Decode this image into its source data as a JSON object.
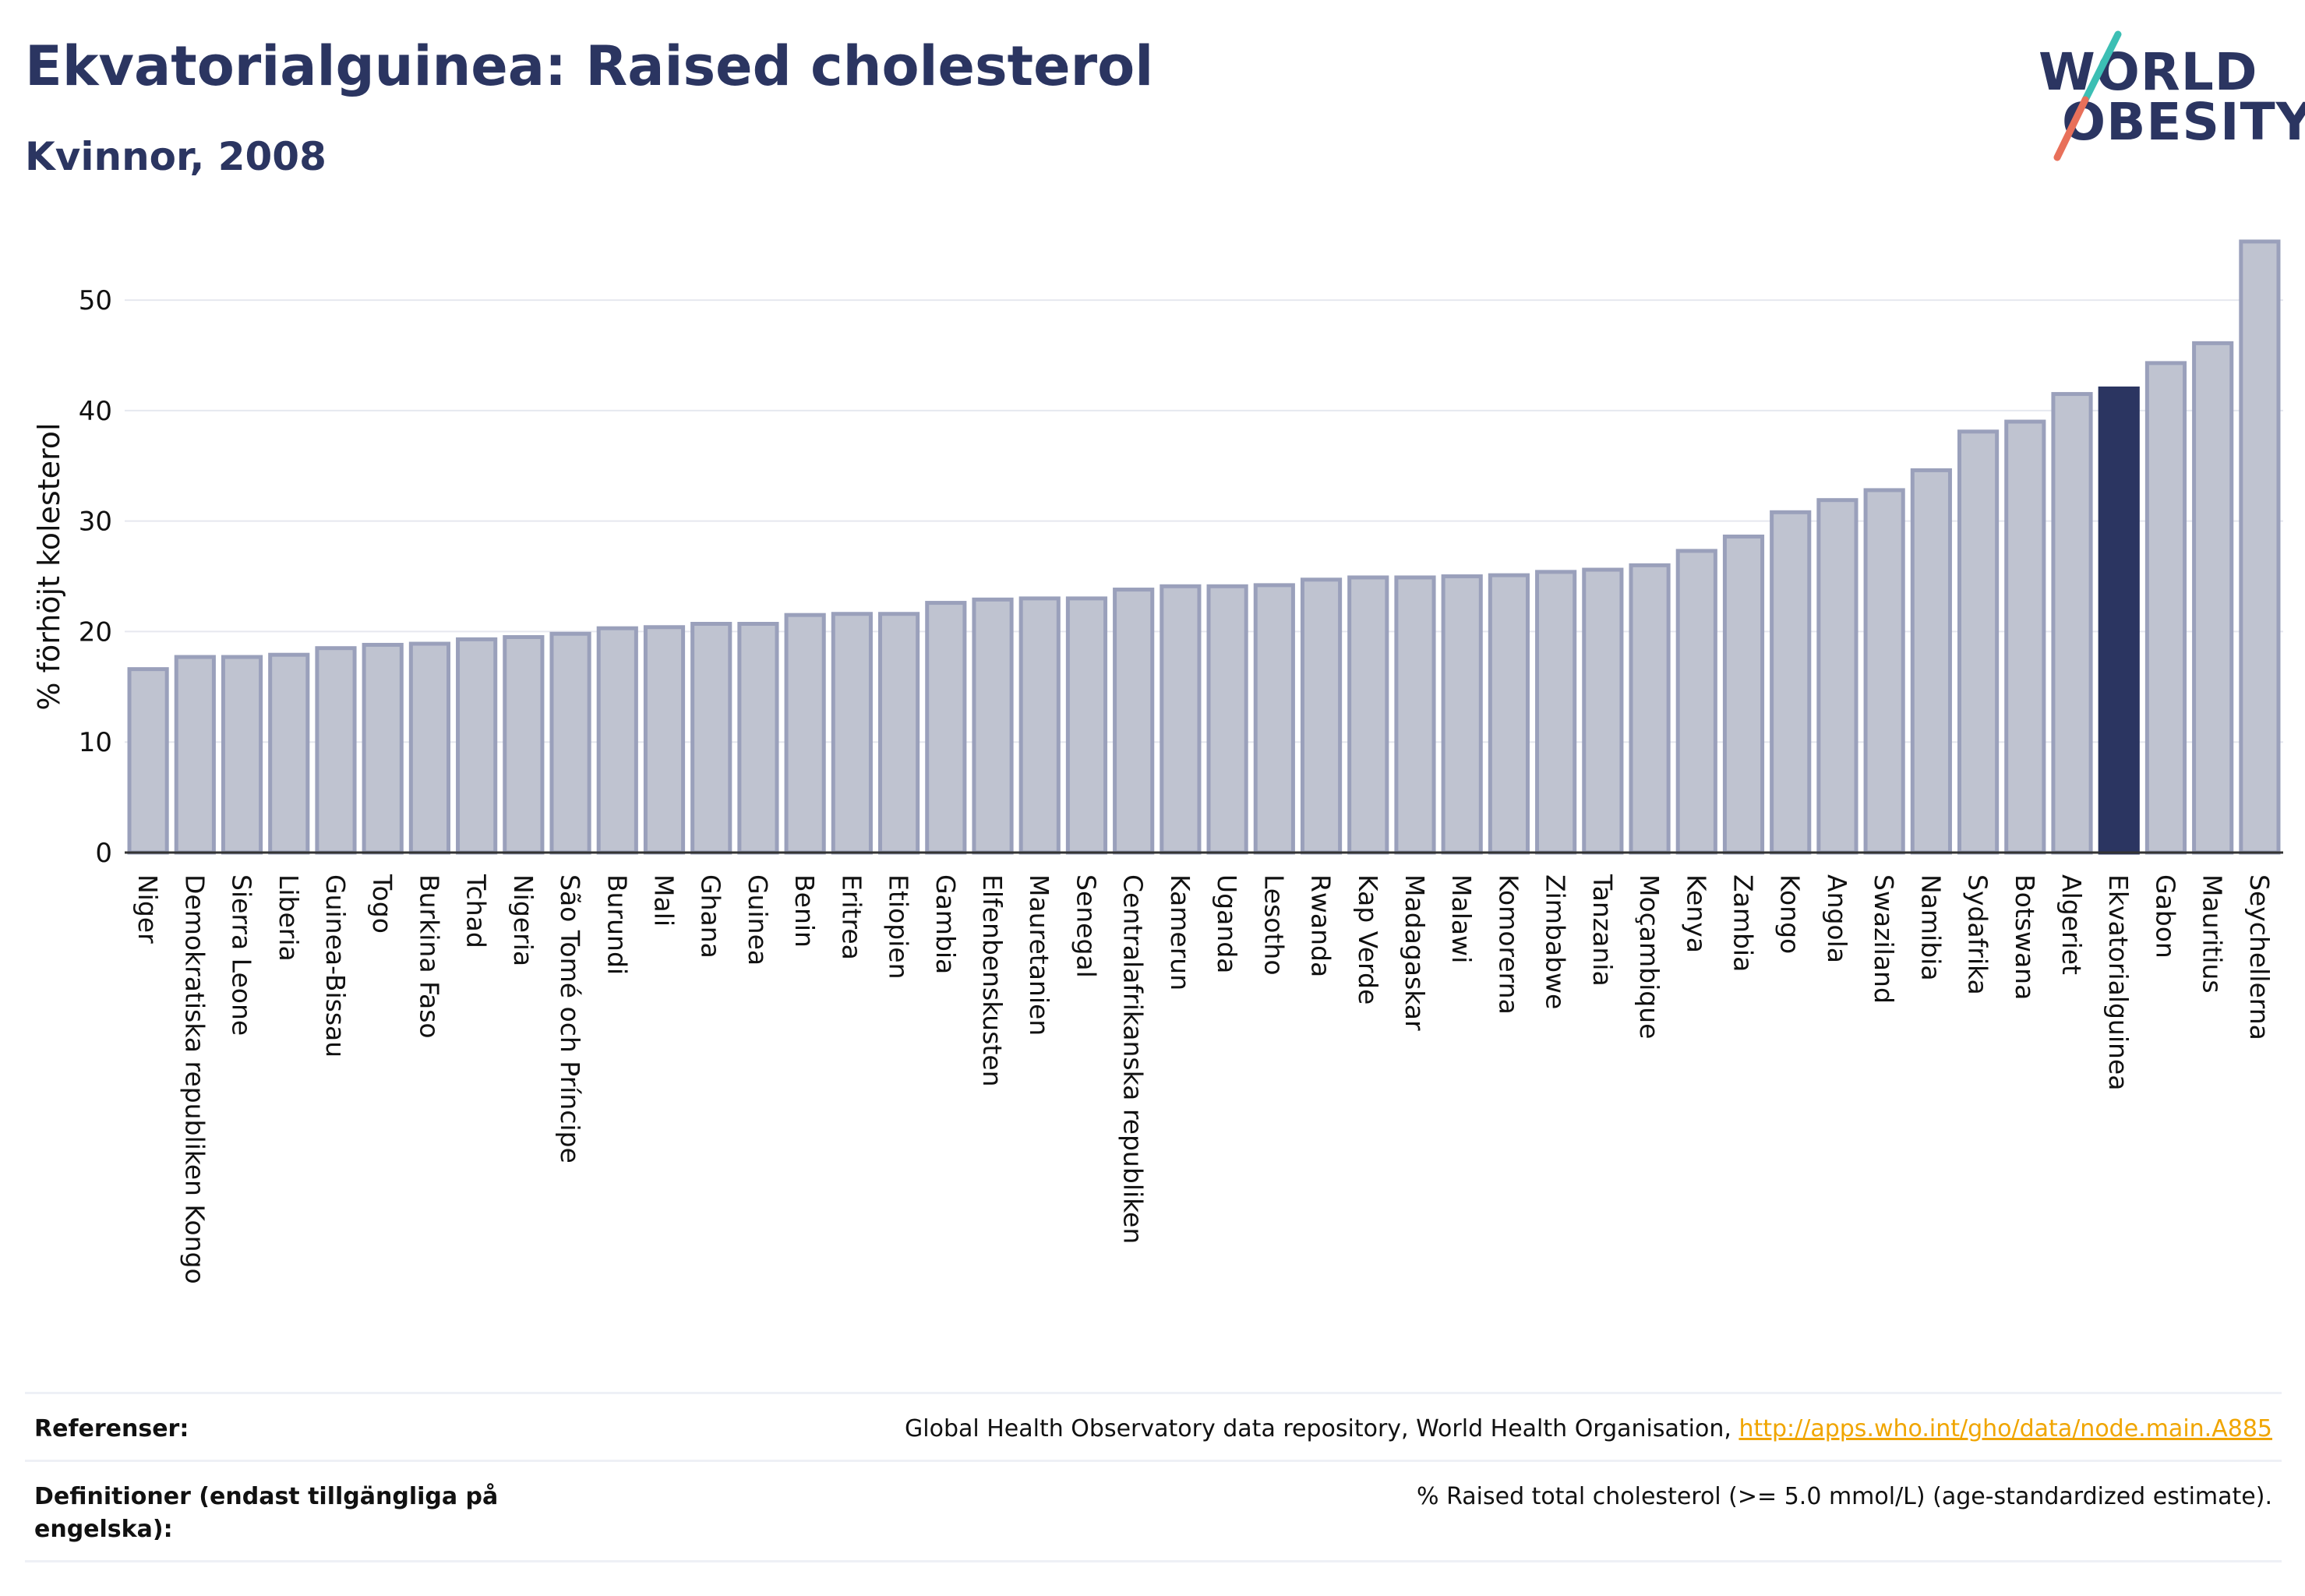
{
  "header": {
    "title": "Ekvatorialguinea: Raised cholesterol",
    "subtitle": "Kvinnor, 2008",
    "logo_line1": "WORLD",
    "logo_line2": "OBESITY"
  },
  "colors": {
    "title": "#2b3561",
    "bar": "#bfc3d0",
    "bar_stroke": "#9aa0bb",
    "highlight": "#2b3561",
    "link": "#f0a500",
    "logo_teal": "#3cbfb4",
    "logo_coral": "#e8705a"
  },
  "chart_data": {
    "type": "bar",
    "ylabel": "% förhöjt kolesterol",
    "xlabel": "",
    "ylim": [
      0,
      56
    ],
    "yticks": [
      0,
      10,
      20,
      30,
      40,
      50
    ],
    "grid": true,
    "highlight": "Ekvatorialguinea",
    "categories": [
      "Niger",
      "Demokratiska republiken Kongo",
      "Sierra Leone",
      "Liberia",
      "Guinea-Bissau",
      "Togo",
      "Burkina Faso",
      "Tchad",
      "Nigeria",
      "São Tomé och Príncipe",
      "Burundi",
      "Mali",
      "Ghana",
      "Guinea",
      "Benin",
      "Eritrea",
      "Etiopien",
      "Gambia",
      "Elfenbenskusten",
      "Mauretanien",
      "Senegal",
      "Centralafrikanska republiken",
      "Kamerun",
      "Uganda",
      "Lesotho",
      "Rwanda",
      "Kap Verde",
      "Madagaskar",
      "Malawi",
      "Komorerna",
      "Zimbabwe",
      "Tanzania",
      "Moçambique",
      "Kenya",
      "Zambia",
      "Kongo",
      "Angola",
      "Swaziland",
      "Namibia",
      "Sydafrika",
      "Botswana",
      "Algeriet",
      "Ekvatorialguinea",
      "Gabon",
      "Mauritius",
      "Seychellerna"
    ],
    "values": [
      16.6,
      17.7,
      17.7,
      17.9,
      18.5,
      18.8,
      18.9,
      19.3,
      19.5,
      19.8,
      20.3,
      20.4,
      20.7,
      20.7,
      21.5,
      21.6,
      21.6,
      22.6,
      22.9,
      23.0,
      23.0,
      23.8,
      24.1,
      24.1,
      24.2,
      24.7,
      24.9,
      24.9,
      25.0,
      25.1,
      25.4,
      25.6,
      26.0,
      27.3,
      28.6,
      30.8,
      31.9,
      32.8,
      34.6,
      38.1,
      39.0,
      41.5,
      42.0,
      44.3,
      46.1,
      55.3
    ]
  },
  "references": {
    "ref_label": "Referenser:",
    "ref_text": "Global Health Observatory data repository, World Health Organisation, ",
    "ref_link": "http://apps.who.int/gho/data/node.main.A885",
    "def_label": "Definitioner (endast tillgängliga på engelska):",
    "def_text": "% Raised total cholesterol (>= 5.0 mmol/L) (age-standardized estimate)."
  }
}
